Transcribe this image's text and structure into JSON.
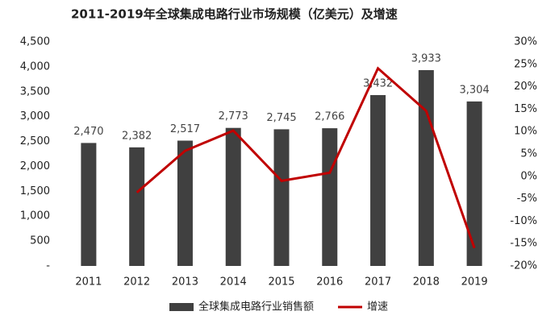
{
  "chart_data": {
    "type": "bar",
    "title": "2011-2019年全球集成电路行业市场规模（亿美元）及增速",
    "categories": [
      "2011",
      "2012",
      "2013",
      "2014",
      "2015",
      "2016",
      "2017",
      "2018",
      "2019"
    ],
    "series": [
      {
        "name": "全球集成电路行业销售额",
        "type": "bar",
        "color": "#404040",
        "values": [
          2470,
          2382,
          2517,
          2773,
          2745,
          2766,
          3432,
          3933,
          3304
        ],
        "value_labels": [
          "2,470",
          "2,382",
          "2,517",
          "2,773",
          "2,745",
          "2,766",
          "3,432",
          "3,933",
          "3,304"
        ]
      },
      {
        "name": "增速",
        "type": "line",
        "axis": "y2",
        "color": "#c00000",
        "values": [
          null,
          -3.6,
          5.7,
          10.2,
          -1.0,
          0.8,
          24.1,
          14.6,
          -16.0
        ]
      }
    ],
    "ylim": [
      0,
      4500
    ],
    "yticks": [
      {
        "value": 0,
        "label": "-"
      },
      500,
      {
        "value": 1000,
        "label": "1,000"
      },
      {
        "value": 1500,
        "label": "1,500"
      },
      {
        "value": 2000,
        "label": "2,000"
      },
      {
        "value": 2500,
        "label": "2,500"
      },
      {
        "value": 3000,
        "label": "3,000"
      },
      {
        "value": 3500,
        "label": "3,500"
      },
      {
        "value": 4000,
        "label": "4,000"
      },
      {
        "value": 4500,
        "label": "4,500"
      }
    ],
    "y2lim": [
      -20,
      30
    ],
    "y2ticks": [
      {
        "value": -20,
        "label": "-20%"
      },
      {
        "value": -15,
        "label": "-15%"
      },
      {
        "value": -10,
        "label": "-10%"
      },
      {
        "value": -5,
        "label": "-5%"
      },
      {
        "value": 0,
        "label": "0%"
      },
      {
        "value": 5,
        "label": "5%"
      },
      {
        "value": 10,
        "label": "10%"
      },
      {
        "value": 15,
        "label": "15%"
      },
      {
        "value": 20,
        "label": "20%"
      },
      {
        "value": 25,
        "label": "25%"
      },
      {
        "value": 30,
        "label": "30%"
      }
    ],
    "legend": "bottom"
  }
}
